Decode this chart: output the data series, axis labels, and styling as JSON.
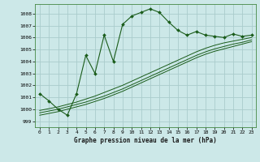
{
  "xlabel": "Graphe pression niveau de la mer (hPa)",
  "background_color": "#cce8e8",
  "grid_color": "#aacccc",
  "line_color": "#1a5c1a",
  "xlim": [
    -0.5,
    23.5
  ],
  "ylim": [
    998.5,
    1008.8
  ],
  "yticks": [
    999,
    1000,
    1001,
    1002,
    1003,
    1004,
    1005,
    1006,
    1007,
    1008
  ],
  "xticks": [
    0,
    1,
    2,
    3,
    4,
    5,
    6,
    7,
    8,
    9,
    10,
    11,
    12,
    13,
    14,
    15,
    16,
    17,
    18,
    19,
    20,
    21,
    22,
    23
  ],
  "main_data": [
    1001.3,
    1000.7,
    1000.0,
    999.5,
    1001.3,
    1004.5,
    1003.0,
    1006.2,
    1004.0,
    1007.1,
    1007.8,
    1008.1,
    1008.4,
    1008.1,
    1007.3,
    1006.6,
    1006.2,
    1006.5,
    1006.2,
    1006.1,
    1006.0,
    1006.3,
    1006.1,
    1006.2
  ],
  "trend1": [
    999.9,
    1000.05,
    1000.2,
    1000.4,
    1000.6,
    1000.85,
    1001.1,
    1001.4,
    1001.7,
    1002.0,
    1002.35,
    1002.7,
    1003.05,
    1003.4,
    1003.75,
    1004.1,
    1004.45,
    1004.8,
    1005.1,
    1005.35,
    1005.55,
    1005.7,
    1005.85,
    1006.0
  ],
  "trend2": [
    999.7,
    999.85,
    1000.0,
    1000.2,
    1000.4,
    1000.6,
    1000.85,
    1001.1,
    1001.4,
    1001.7,
    1002.05,
    1002.4,
    1002.75,
    1003.1,
    1003.45,
    1003.8,
    1004.15,
    1004.5,
    1004.8,
    1005.05,
    1005.25,
    1005.45,
    1005.6,
    1005.8
  ],
  "trend3": [
    999.5,
    999.65,
    999.8,
    1000.0,
    1000.2,
    1000.4,
    1000.65,
    1000.9,
    1001.2,
    1001.5,
    1001.85,
    1002.2,
    1002.55,
    1002.9,
    1003.25,
    1003.6,
    1003.95,
    1004.3,
    1004.6,
    1004.85,
    1005.05,
    1005.25,
    1005.45,
    1005.65
  ]
}
